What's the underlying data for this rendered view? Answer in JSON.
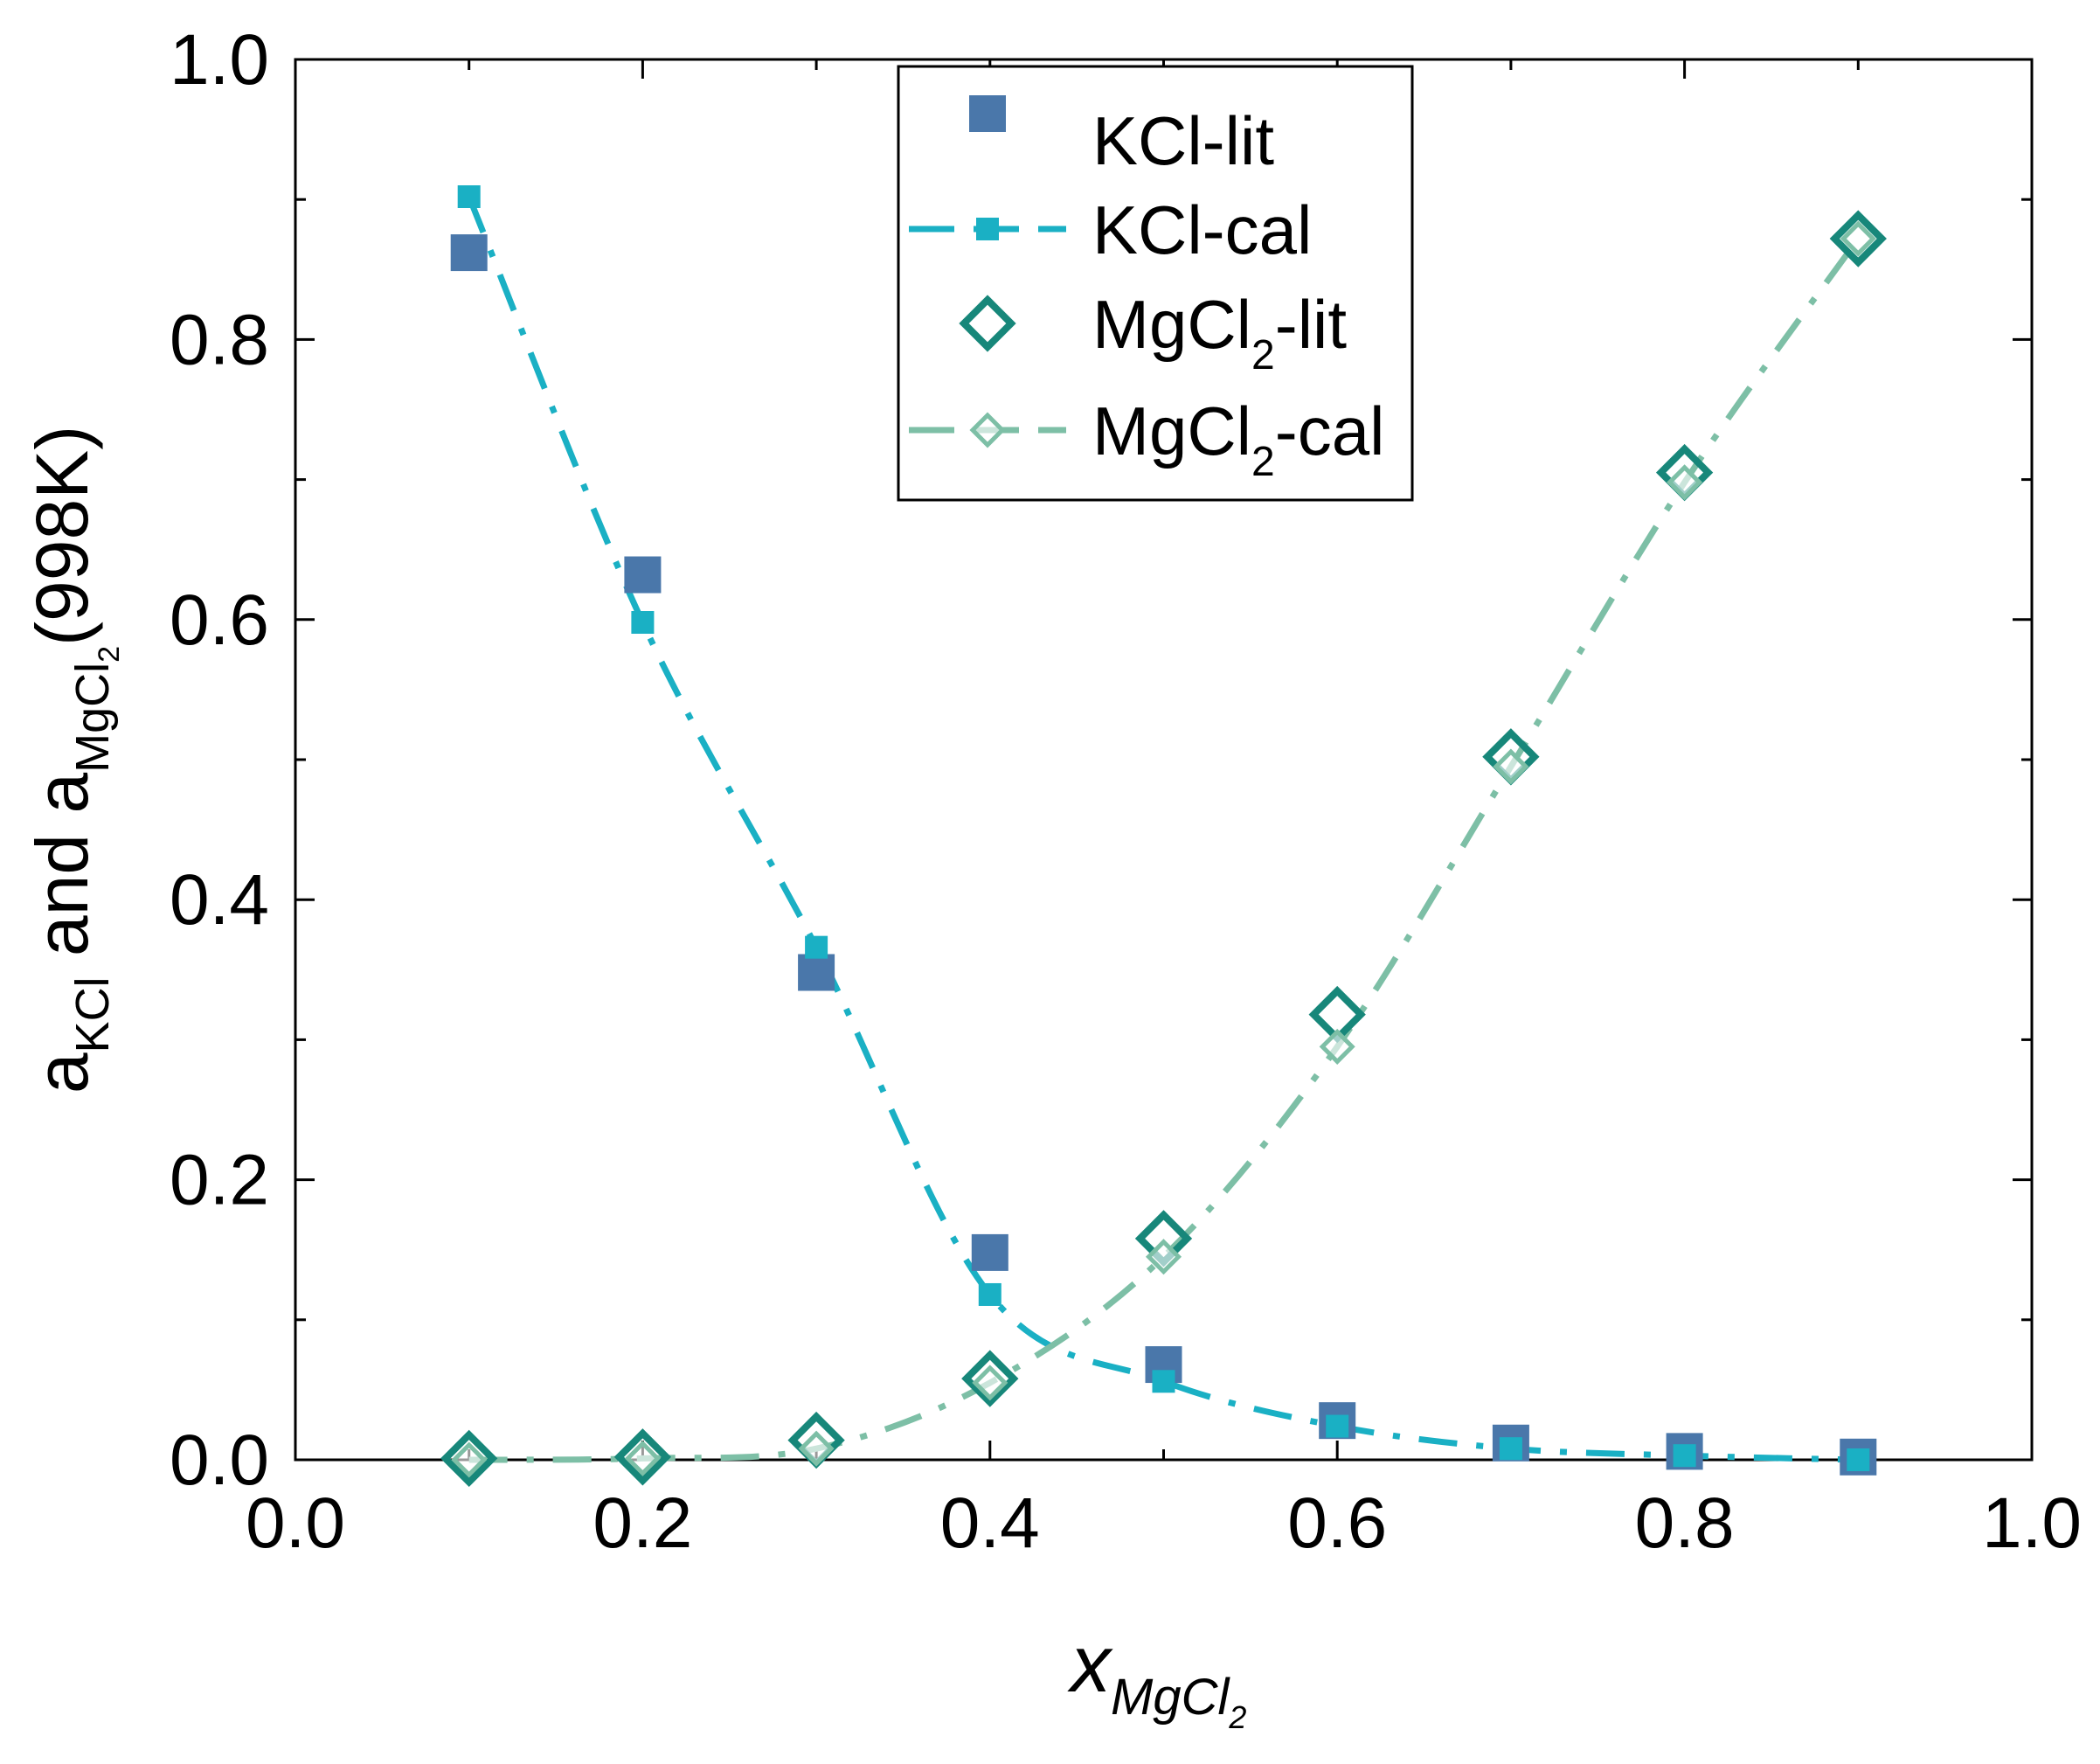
{
  "chart_data": {
    "type": "scatter",
    "x_axis": {
      "label_main": "x",
      "label_sub": "MgCl",
      "label_sub_index": "2",
      "range": [
        0.0,
        1.0
      ],
      "ticks": [
        0.0,
        0.2,
        0.4,
        0.6,
        0.8,
        1.0
      ],
      "tick_labels": [
        "0.0",
        "0.2",
        "0.4",
        "0.6",
        "0.8",
        "1.0"
      ]
    },
    "y_axis": {
      "label_part1": "a",
      "label_sub1": "KCl",
      "label_part2": " and a",
      "label_sub2": "MgCl",
      "label_sub2_index": "2",
      "label_part3": "(998K)",
      "range": [
        0.0,
        1.0
      ],
      "ticks": [
        0.0,
        0.2,
        0.4,
        0.6,
        0.8,
        1.0
      ],
      "tick_labels": [
        "0.0",
        "0.2",
        "0.4",
        "0.6",
        "0.8",
        "1.0"
      ]
    },
    "legend": {
      "position": "top-center",
      "entries": [
        {
          "name": "KCl-lit",
          "main": "KCl-lit",
          "sub": "",
          "suffix": ""
        },
        {
          "name": "KCl-cal",
          "main": "KCl-cal",
          "sub": "",
          "suffix": ""
        },
        {
          "name": "MgCl2-lit",
          "main": "MgCl",
          "sub": "2",
          "suffix": "-lit"
        },
        {
          "name": "MgCl2-cal",
          "main": "MgCl",
          "sub": "2",
          "suffix": "-cal"
        }
      ]
    },
    "series": [
      {
        "name": "KCl-lit",
        "marker": "square-filled",
        "color": "#4a77aa",
        "line": false,
        "x": [
          0.1,
          0.2,
          0.3,
          0.4,
          0.5,
          0.6,
          0.7,
          0.8,
          0.9
        ],
        "y": [
          0.862,
          0.632,
          0.348,
          0.148,
          0.068,
          0.028,
          0.012,
          0.006,
          0.002
        ]
      },
      {
        "name": "KCl-cal",
        "marker": "square-small",
        "color": "#1ab0c4",
        "line": "dash-dot",
        "x": [
          0.1,
          0.2,
          0.3,
          0.4,
          0.5,
          0.6,
          0.7,
          0.8,
          0.9
        ],
        "y": [
          0.902,
          0.598,
          0.366,
          0.118,
          0.056,
          0.024,
          0.008,
          0.003,
          0.0
        ]
      },
      {
        "name": "MgCl2-lit",
        "marker": "diamond-open",
        "color": "#17877a",
        "line": false,
        "x": [
          0.1,
          0.2,
          0.3,
          0.4,
          0.5,
          0.6,
          0.7,
          0.8,
          0.9
        ],
        "y": [
          0.001,
          0.002,
          0.014,
          0.058,
          0.158,
          0.318,
          0.502,
          0.705,
          0.872
        ]
      },
      {
        "name": "MgCl2-cal",
        "marker": "diamond-small-open",
        "color": "#7dbfa6",
        "line": "dash-dot",
        "x": [
          0.1,
          0.2,
          0.3,
          0.4,
          0.5,
          0.6,
          0.7,
          0.8,
          0.9
        ],
        "y": [
          0.0,
          0.001,
          0.008,
          0.055,
          0.145,
          0.295,
          0.495,
          0.698,
          0.872
        ]
      }
    ]
  }
}
